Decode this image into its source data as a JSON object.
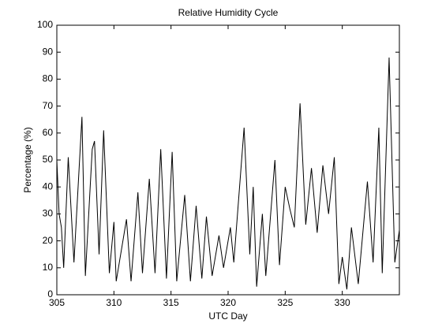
{
  "chart_data": {
    "type": "line",
    "title": "Relative Humidity Cycle",
    "x_label": "UTC Day",
    "y_label": "Percentage (%)",
    "x": [
      305,
      305.2,
      305.4,
      305.6,
      306,
      306.5,
      307.2,
      307.5,
      308.1,
      308.3,
      308.7,
      309.1,
      309.6,
      310,
      310.2,
      311.1,
      311.5,
      312.1,
      312.5,
      313.1,
      313.6,
      314.1,
      314.6,
      315.1,
      315.5,
      316.2,
      316.7,
      317.2,
      317.7,
      318.1,
      318.6,
      319.2,
      319.6,
      320.2,
      320.5,
      321.4,
      321.9,
      322.2,
      322.5,
      323,
      323.3,
      324.1,
      324.5,
      325,
      325.4,
      325.8,
      326.3,
      326.8,
      327.3,
      327.8,
      328.3,
      328.8,
      329.3,
      329.7,
      330,
      330.4,
      330.8,
      331.4,
      332.2,
      332.7,
      333.2,
      333.5,
      334.1,
      334.6,
      335
    ],
    "series": [
      {
        "name": "Relative Humidity",
        "color": "#000000",
        "values": [
          50,
          30,
          25,
          10,
          51,
          12,
          66,
          7,
          54,
          57,
          15,
          61,
          8,
          27,
          5,
          28,
          5,
          38,
          8,
          43,
          8,
          54,
          6,
          53,
          5,
          37,
          5,
          33,
          6,
          29,
          7,
          22,
          10,
          25,
          12,
          62,
          15,
          40,
          3,
          30,
          7,
          50,
          11,
          40,
          32,
          25,
          71,
          26,
          47,
          23,
          48,
          30,
          51,
          4,
          14,
          2,
          25,
          4,
          42,
          12,
          62,
          8,
          88,
          12,
          24
        ]
      }
    ],
    "xlim": [
      305,
      335
    ],
    "ylim": [
      0,
      100
    ],
    "xticks": [
      305,
      310,
      315,
      320,
      325,
      330
    ],
    "yticks": [
      0,
      10,
      20,
      30,
      40,
      50,
      60,
      70,
      80,
      90,
      100
    ]
  }
}
